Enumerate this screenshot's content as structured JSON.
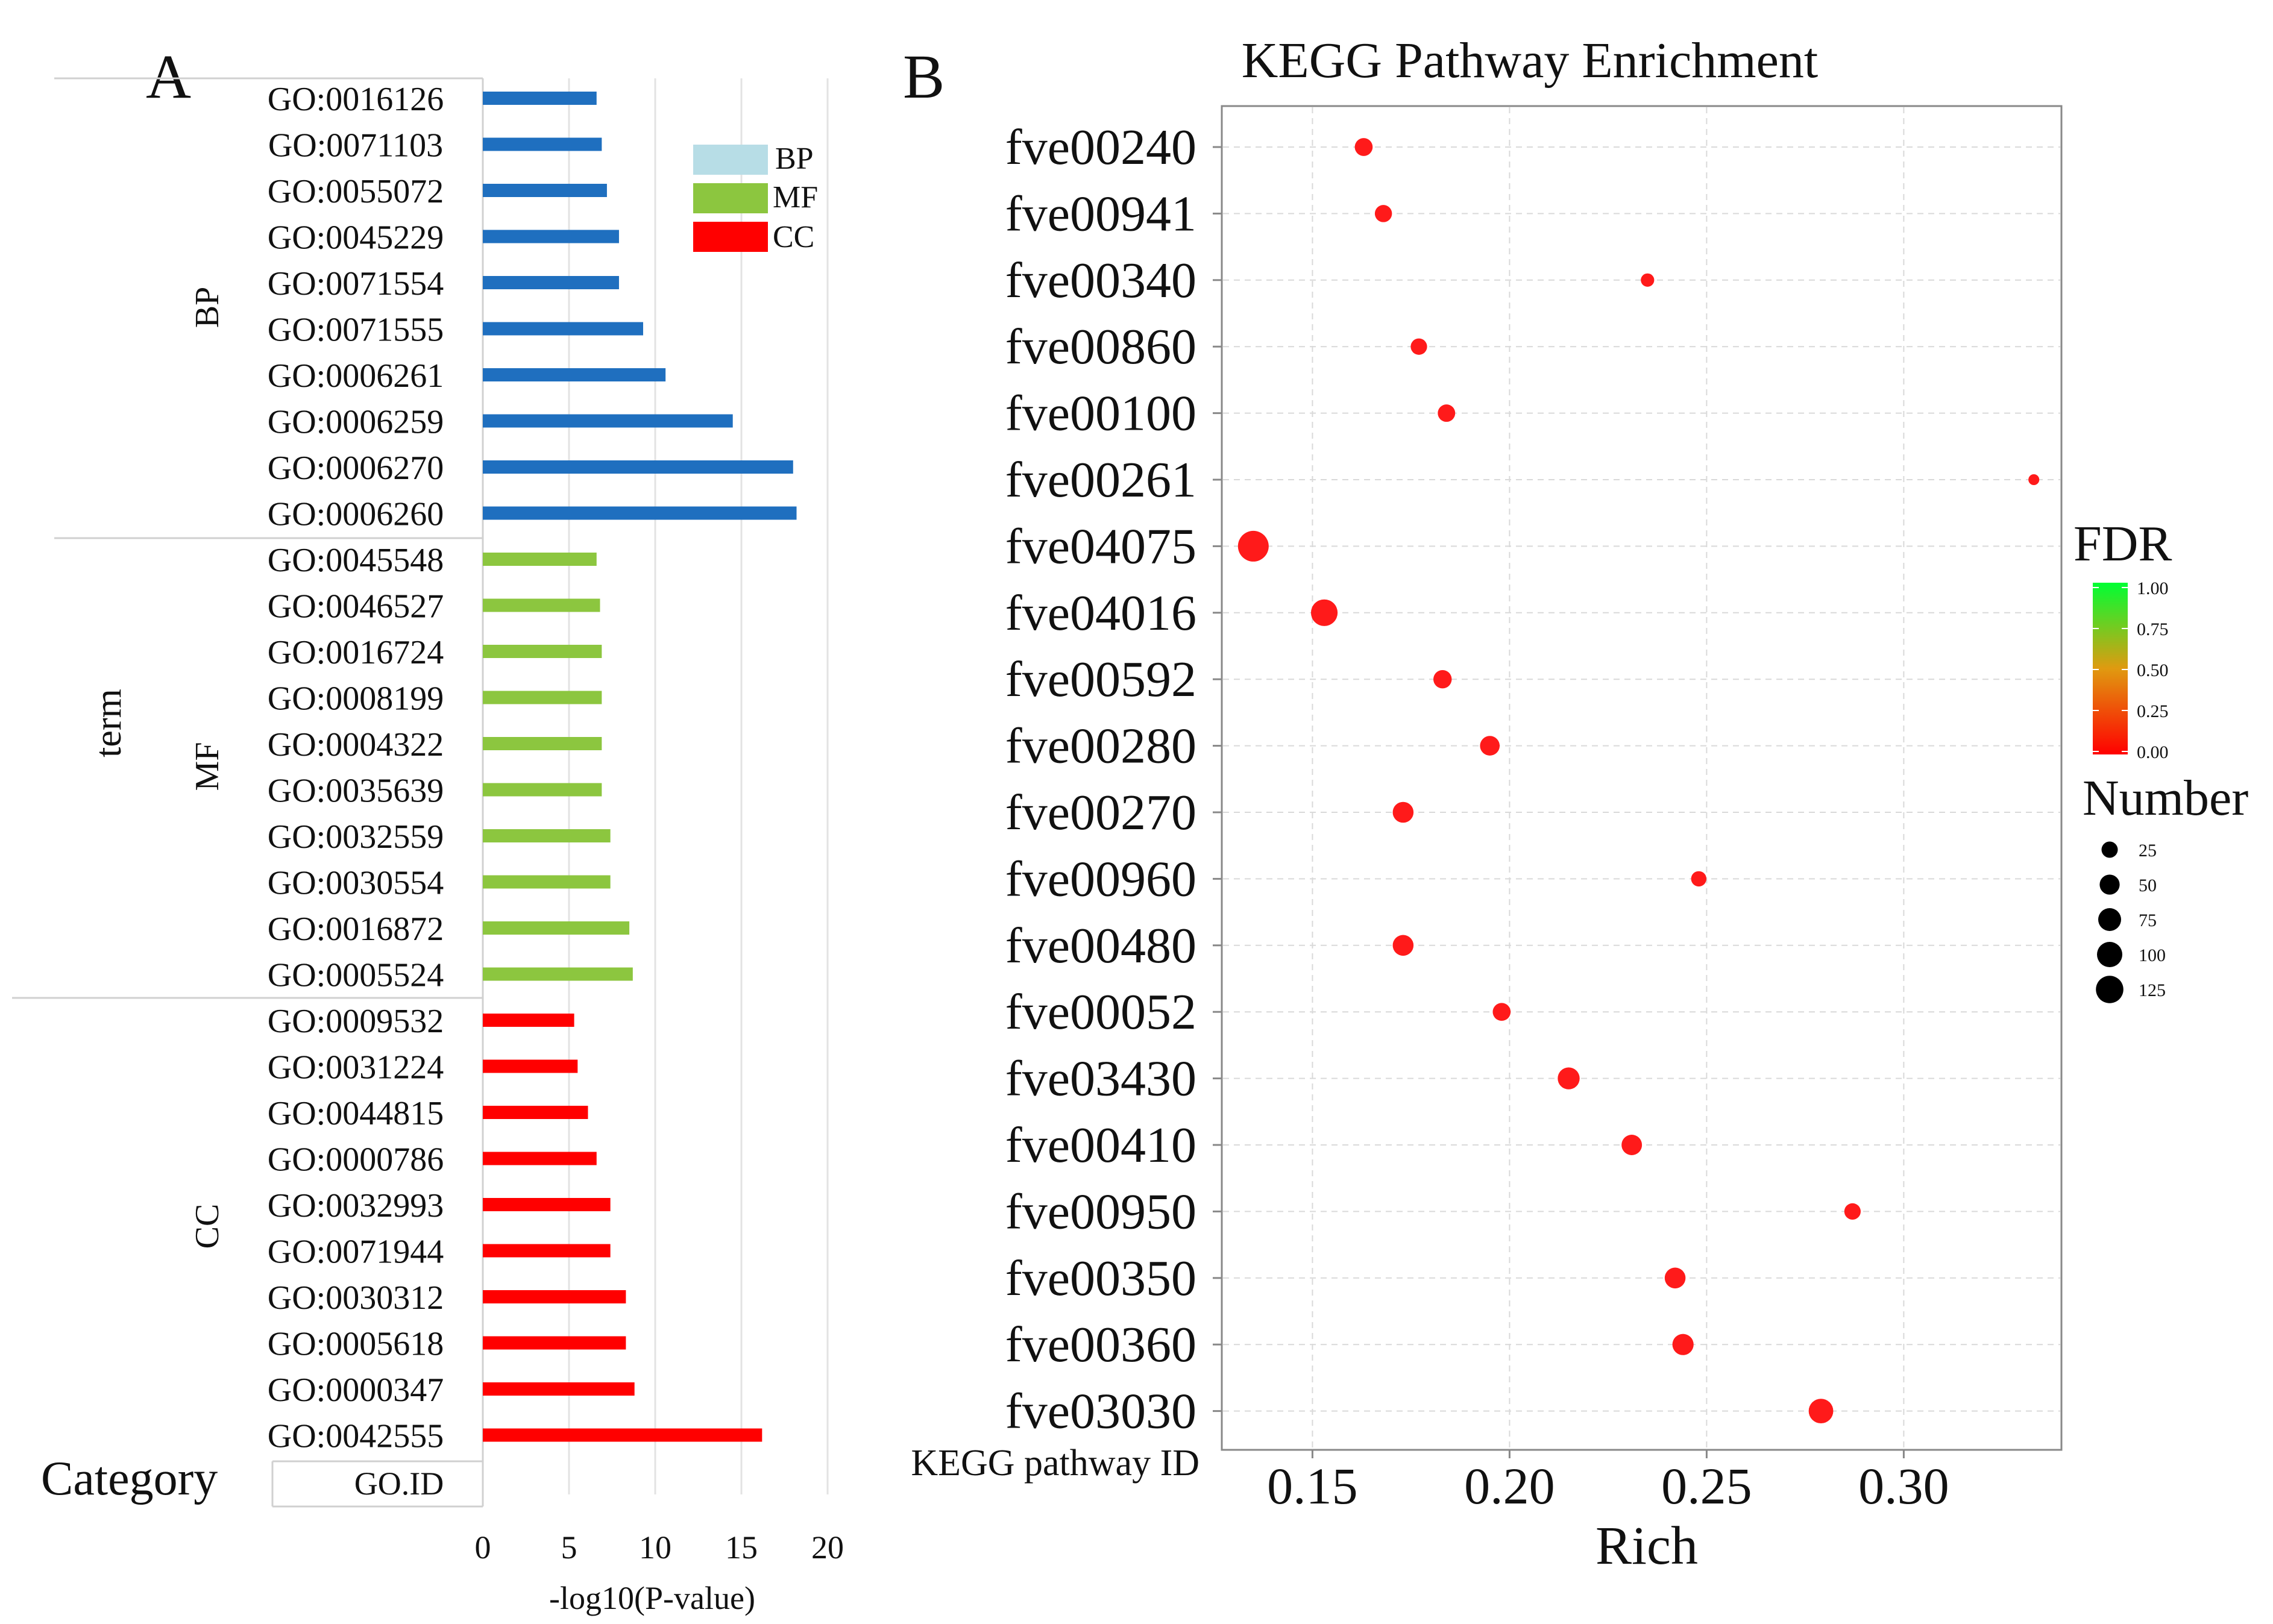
{
  "chart_data": [
    {
      "type": "bar",
      "orientation": "horizontal",
      "panel_label": "A",
      "y_label": "term",
      "x_label": "-log10(P-value)",
      "xlim": [
        0,
        20
      ],
      "x_ticks": [
        "0",
        "5",
        "10",
        "15",
        "20"
      ],
      "category_header": "Category",
      "id_header": "GO.ID",
      "legend": [
        {
          "name": "BP",
          "color": "#b7dde6"
        },
        {
          "name": "MF",
          "color": "#8cc63f"
        },
        {
          "name": "CC",
          "color": "#ff0000"
        }
      ],
      "groups": [
        {
          "name": "BP",
          "color": "#1f6fbf",
          "terms": [
            "GO:0016126",
            "GO:0071103",
            "GO:0055072",
            "GO:0045229",
            "GO:0071554",
            "GO:0071555",
            "GO:0006261",
            "GO:0006259",
            "GO:0006270",
            "GO:0006260"
          ],
          "values": [
            6.6,
            6.9,
            7.2,
            7.9,
            7.9,
            9.3,
            10.6,
            14.5,
            18.0,
            18.2
          ]
        },
        {
          "name": "MF",
          "color": "#8cc63f",
          "terms": [
            "GO:0045548",
            "GO:0046527",
            "GO:0016724",
            "GO:0008199",
            "GO:0004322",
            "GO:0035639",
            "GO:0032559",
            "GO:0030554",
            "GO:0016872",
            "GO:0005524"
          ],
          "values": [
            6.6,
            6.8,
            6.9,
            6.9,
            6.9,
            6.9,
            7.4,
            7.4,
            8.5,
            8.7
          ]
        },
        {
          "name": "CC",
          "color": "#ff0000",
          "terms": [
            "GO:0009532",
            "GO:0031224",
            "GO:0044815",
            "GO:0000786",
            "GO:0032993",
            "GO:0071944",
            "GO:0030312",
            "GO:0005618",
            "GO:0000347",
            "GO:0042555"
          ],
          "values": [
            5.3,
            5.5,
            6.1,
            6.6,
            7.4,
            7.4,
            8.3,
            8.3,
            8.8,
            16.2
          ]
        }
      ]
    },
    {
      "type": "scatter",
      "panel_label": "B",
      "title": "KEGG Pathway Enrichment",
      "xlabel": "Rich",
      "ylabel": "KEGG pathway ID",
      "xlim": [
        0.127,
        0.34
      ],
      "x_ticks": [
        0.15,
        0.2,
        0.25,
        0.3
      ],
      "x_tick_labels": [
        "0.15",
        "0.20",
        "0.25",
        "0.30"
      ],
      "fdr_title": "FDR",
      "fdr_ticks": [
        "1.00",
        "0.75",
        "0.50",
        "0.25",
        "0.00"
      ],
      "size_title": "Number",
      "size_ticks": [
        "25",
        "50",
        "75",
        "100",
        "125"
      ],
      "point_color": "#ff1a1a",
      "categories": [
        "fve00240",
        "fve00941",
        "fve00340",
        "fve00860",
        "fve00100",
        "fve00261",
        "fve04075",
        "fve04016",
        "fve00592",
        "fve00280",
        "fve00270",
        "fve00960",
        "fve00480",
        "fve00052",
        "fve03430",
        "fve00410",
        "fve00950",
        "fve00350",
        "fve00360",
        "fve03030"
      ],
      "x": [
        0.163,
        0.168,
        0.235,
        0.177,
        0.184,
        0.333,
        0.135,
        0.153,
        0.183,
        0.195,
        0.173,
        0.248,
        0.173,
        0.198,
        0.215,
        0.231,
        0.287,
        0.242,
        0.244,
        0.279
      ],
      "number": [
        28,
        25,
        12,
        22,
        26,
        6,
        110,
        78,
        30,
        36,
        42,
        18,
        42,
        28,
        48,
        40,
        22,
        42,
        44,
        64
      ],
      "fdr": [
        0,
        0,
        0,
        0,
        0,
        0,
        0,
        0,
        0,
        0,
        0,
        0,
        0,
        0,
        0,
        0,
        0,
        0,
        0,
        0
      ]
    }
  ]
}
